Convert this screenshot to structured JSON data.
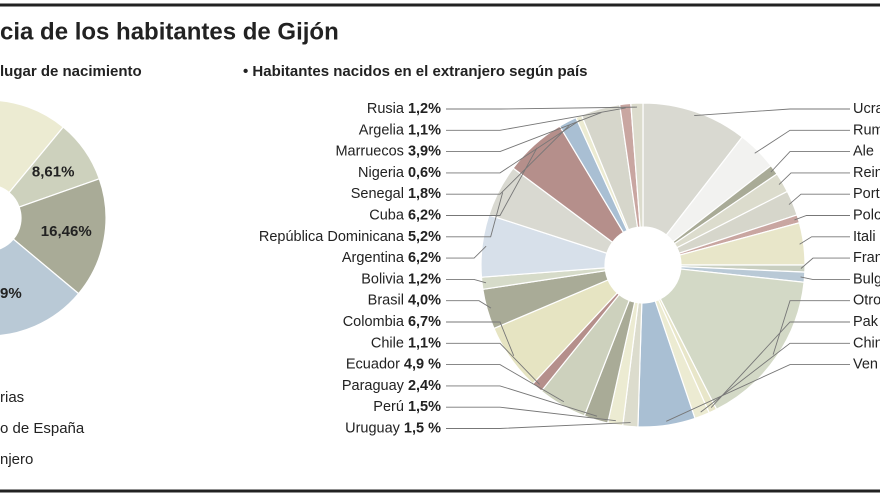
{
  "title": "cia de los habitantes de Gijón",
  "chart_data": [
    {
      "type": "donut",
      "subtitle": "lugar de nacimiento",
      "values": [
        11.0,
        8.61,
        16.46,
        63.93
      ],
      "value_labels": [
        null,
        "8,61%",
        "16,46%",
        null
      ],
      "colors": [
        "#ecebd2",
        "#cdd1bd",
        "#a9ab97",
        "#b9c9d6"
      ],
      "annotations": [
        "9%"
      ],
      "legend": [
        "rias",
        "o de España",
        "njero"
      ]
    },
    {
      "type": "donut",
      "subtitle": "• Habitantes nacidos en el extranjero según país",
      "categories": [
        "Ucra",
        "Rum",
        "Ale",
        "Rein",
        "Port",
        "Polo",
        "Itali",
        "Fran",
        "Bulg",
        "Otro",
        "Pak",
        "Chin",
        "Ven",
        "Uruguay",
        "Perú",
        "Paraguay",
        "Ecuador",
        "Chile",
        "Colombia",
        "Brasil",
        "Bolivia",
        "Argentina",
        "República Dominicana",
        "Cuba",
        "Senegal",
        "Nigeria",
        "Marruecos",
        "Argelia",
        "Rusia"
      ],
      "values": [
        10.5,
        4.0,
        1.0,
        2.0,
        2.5,
        0.8,
        4.2,
        0.7,
        1.0,
        15.8,
        0.8,
        1.5,
        5.7,
        1.5,
        1.5,
        2.4,
        4.9,
        1.1,
        6.7,
        4.0,
        1.2,
        6.2,
        5.2,
        6.2,
        1.8,
        0.6,
        3.9,
        1.1,
        1.2
      ],
      "value_labels": [
        null,
        null,
        null,
        null,
        null,
        null,
        null,
        null,
        null,
        null,
        null,
        null,
        null,
        "1,5 %",
        "1,5%",
        "2,4%",
        "4,9 %",
        "1,1%",
        "6,7%",
        "4,0%",
        "1,2%",
        "6,2%",
        "5,2%",
        "6,2%",
        "1,8%",
        "0,6%",
        "3,9%",
        "1,1%",
        "1,2%"
      ],
      "colors": [
        "#d9d9d1",
        "#f2f2f0",
        "#a9ab97",
        "#dcdccd",
        "#d6d6cb",
        "#c9a6a1",
        "#e8e6c9",
        "#c9cfc0",
        "#b9c9d6",
        "#d3d9c6",
        "#e8e6c9",
        "#ecebd2",
        "#a9bfd3",
        "#dcdccd",
        "#ecebd2",
        "#a9ab97",
        "#cdd1bd",
        "#b58f8b",
        "#e6e4c2",
        "#a9ab97",
        "#d6dbc9",
        "#d7e0ea",
        "#d9d9d1",
        "#b58f8b",
        "#a9bfd3",
        "#ecebd2",
        "#d6d6cb",
        "#c9a6a1",
        "#dcdccd"
      ]
    }
  ]
}
